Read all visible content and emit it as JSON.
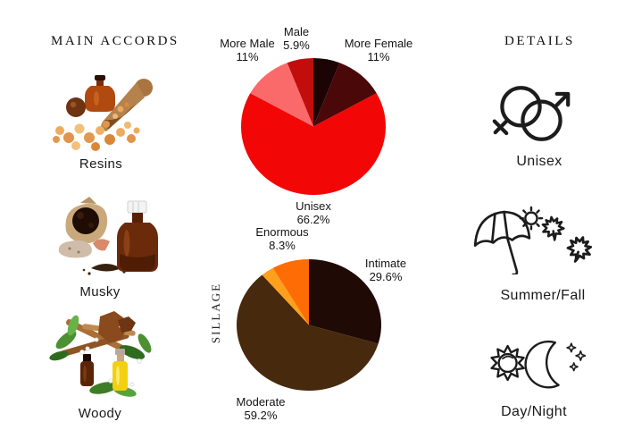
{
  "page": {
    "background": "#ffffff",
    "text_color": "#1b1b1b",
    "icon_color": "#1c1c1c"
  },
  "accords": {
    "header": "MAIN ACCORDS",
    "items": [
      {
        "label": "Resins",
        "image": "resin-pieces-scoop-and-bottle-photo"
      },
      {
        "label": "Musky",
        "image": "musk-pod-pouch-and-brown-bottle-photo"
      },
      {
        "label": "Woody",
        "image": "wood-sticks-leaves-and-oil-bottles-photo"
      }
    ]
  },
  "details": {
    "header": "DETAILS",
    "items": [
      {
        "label": "Unisex",
        "icon": "unisex-gender-icon"
      },
      {
        "label": "Summer/Fall",
        "icon": "umbrella-sun-maple-leaves-icon"
      },
      {
        "label": "Day/Night",
        "icon": "sun-and-moon-icon"
      }
    ]
  },
  "chart_data": [
    {
      "type": "pie",
      "name": "gender",
      "start_angle_deg": 0,
      "direction": "clockwise",
      "legend_position": "around-slices",
      "slices": [
        {
          "label": "Male",
          "value_pct": 5.9,
          "pct_label": "5.9%",
          "color": "#1c0404"
        },
        {
          "label": "More Female",
          "value_pct": 11,
          "pct_label": "11%",
          "color": "#4a0808"
        },
        {
          "label": "Unisex",
          "value_pct": 66.2,
          "pct_label": "66.2%",
          "color": "#f20606"
        },
        {
          "label": "More Male",
          "value_pct": 11,
          "pct_label": "11%",
          "color": "#fa6a6a"
        },
        {
          "label": "",
          "value_pct": 5.9,
          "pct_label": "",
          "color": "#c30d0d"
        }
      ]
    },
    {
      "type": "pie",
      "name": "sillage",
      "side_label": "SILLAGE",
      "start_angle_deg": 0,
      "direction": "clockwise",
      "legend_position": "around-slices",
      "slices": [
        {
          "label": "Intimate",
          "value_pct": 29.6,
          "pct_label": "29.6%",
          "color": "#200a05"
        },
        {
          "label": "Moderate",
          "value_pct": 59.2,
          "pct_label": "59.2%",
          "color": "#47290d"
        },
        {
          "label": "",
          "value_pct": 2.9,
          "pct_label": "",
          "color": "#ffa01c"
        },
        {
          "label": "Enormous",
          "value_pct": 8.3,
          "pct_label": "8.3%",
          "color": "#fd6c05"
        }
      ]
    }
  ]
}
